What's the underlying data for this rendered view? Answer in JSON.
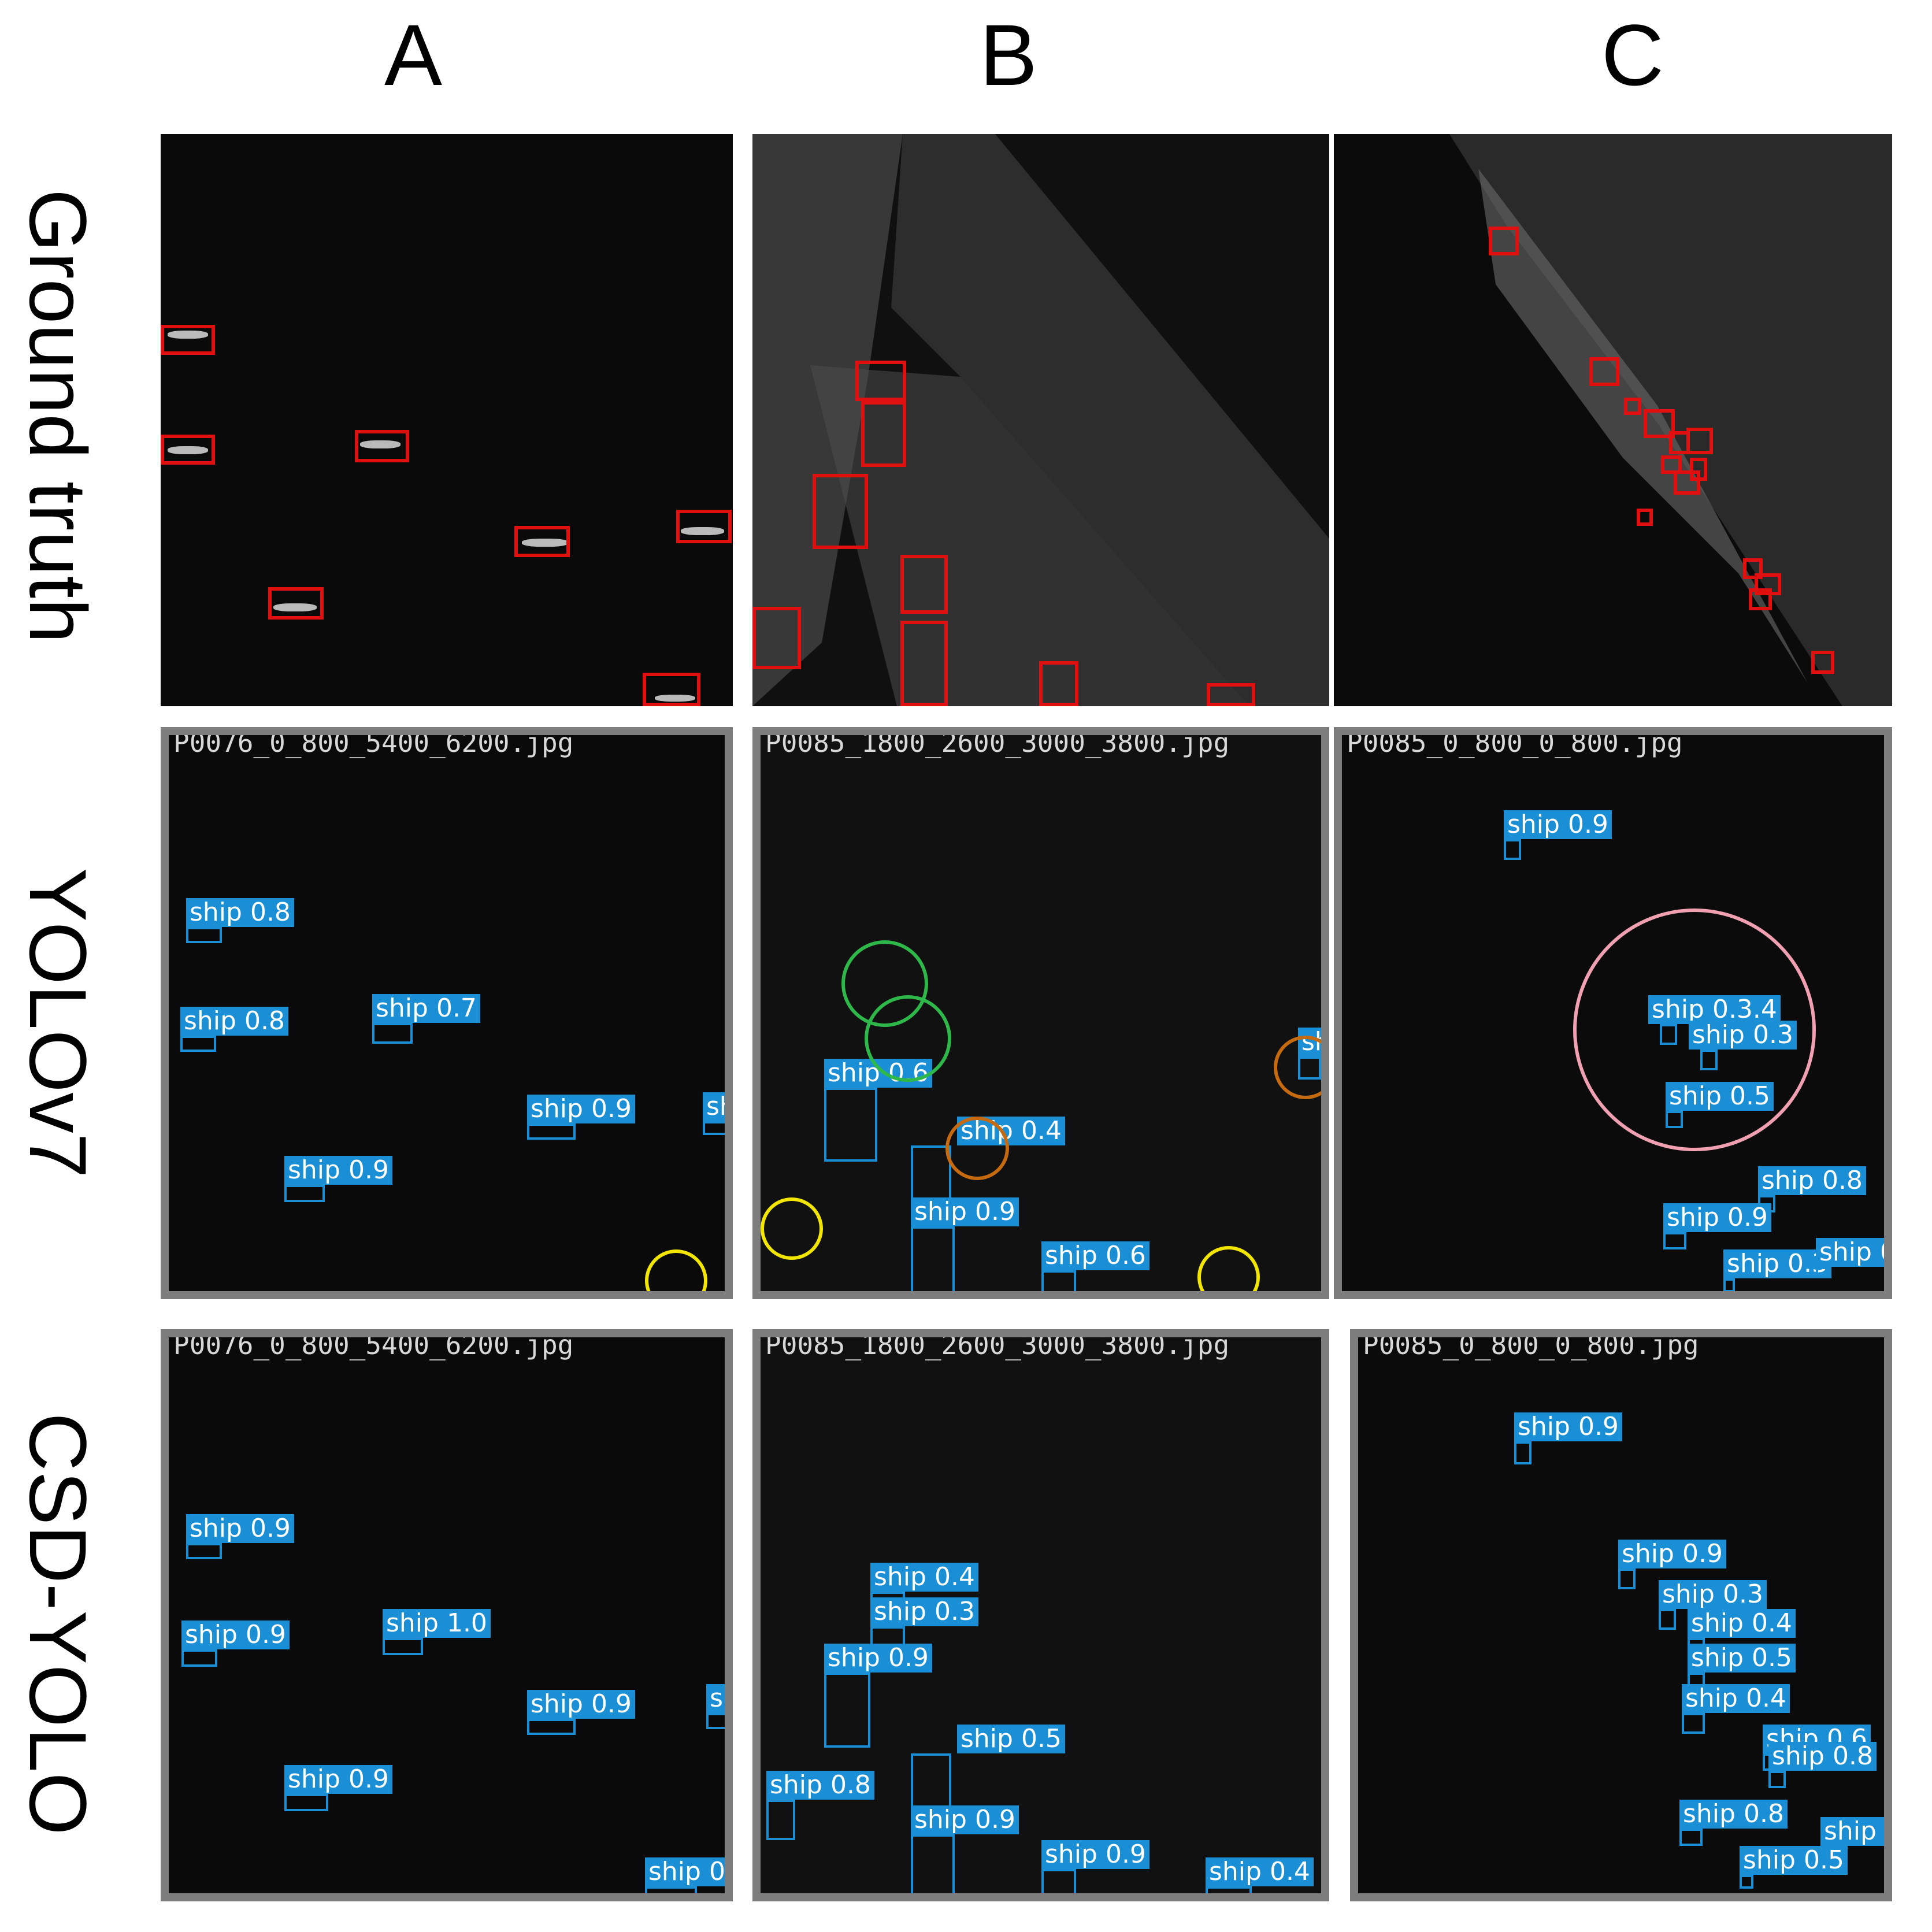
{
  "columns": [
    "A",
    "B",
    "C"
  ],
  "rows": [
    "Ground truth",
    "YOLOv7",
    "CSD-YOLO"
  ],
  "files": {
    "a": "P0076_0_800_5400_6200.jpg",
    "b": "P0085_1800_2600_3000_3800.jpg",
    "c": "P0085_0_800_0_800.jpg"
  },
  "colors": {
    "ground_truth_box": "#e01010",
    "detection": "#1a8fd6",
    "ring_missed": "#f2e600",
    "ring_false": "#2fb84a",
    "ring_orange": "#c66a10",
    "ring_pink": "#f0a0b0"
  },
  "yolo_labels": {
    "a": [
      "ship 0.8",
      "ship 0.8",
      "ship 0.7",
      "ship 0.9",
      "ship 0.9",
      "shi"
    ],
    "b": [
      "ship 0.6",
      "ship 0.4",
      "ship 0.9",
      "ship 0.9",
      "ship 0.6",
      "sh"
    ],
    "c": [
      "ship 0.9",
      "ship 0.3.4",
      "ship 0.3",
      "ship 0.5",
      "ship 0.8",
      "ship 0.9",
      "ship 0.3",
      "ship 0"
    ]
  },
  "csd_labels": {
    "a": [
      "ship 0.9",
      "ship 0.9",
      "ship 1.0",
      "ship 0.9",
      "ship 0.9",
      "shi",
      "ship 0."
    ],
    "b": [
      "ship 0.4",
      "ship 0.3",
      "ship 0.9",
      "ship 0.5",
      "ship 0.9",
      "ship 0.8",
      "ship 0.9",
      "ship 0.4"
    ],
    "c": [
      "ship 0.9",
      "ship 0.9",
      "ship 0.3",
      "ship 0.4",
      "ship 0.5",
      "ship 0.4",
      "ship 0.6",
      "ship 0.8",
      "ship 0.8",
      "ship 0",
      "ship 0.5"
    ]
  }
}
